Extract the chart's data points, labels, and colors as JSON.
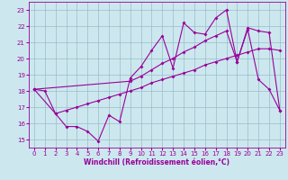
{
  "bg_color": "#cce8ee",
  "grid_color": "#99bbcc",
  "line_color": "#990099",
  "marker": "D",
  "markersize": 2.0,
  "linewidth": 0.8,
  "xlabel": "Windchill (Refroidissement éolien,°C)",
  "xlabel_fontsize": 5.5,
  "tick_fontsize": 5.0,
  "xlim": [
    -0.5,
    23.5
  ],
  "ylim": [
    14.5,
    23.5
  ],
  "yticks": [
    15,
    16,
    17,
    18,
    19,
    20,
    21,
    22,
    23
  ],
  "xticks": [
    0,
    1,
    2,
    3,
    4,
    5,
    6,
    7,
    8,
    9,
    10,
    11,
    12,
    13,
    14,
    15,
    16,
    17,
    18,
    19,
    20,
    21,
    22,
    23
  ],
  "line1_x": [
    0,
    1,
    2,
    3,
    4,
    5,
    6,
    7,
    8,
    9,
    10,
    11,
    12,
    13,
    14,
    15,
    16,
    17,
    18,
    19,
    20,
    21,
    22,
    23
  ],
  "line1_y": [
    18.1,
    18.0,
    16.6,
    15.8,
    15.8,
    15.5,
    14.9,
    16.5,
    16.1,
    18.8,
    19.5,
    20.5,
    21.4,
    19.4,
    22.2,
    21.6,
    21.5,
    22.5,
    23.0,
    19.8,
    21.8,
    18.7,
    18.1,
    16.8
  ],
  "line2_x": [
    0,
    9,
    10,
    11,
    12,
    13,
    14,
    15,
    16,
    17,
    18,
    19,
    20,
    21,
    22,
    23
  ],
  "line2_y": [
    18.1,
    18.6,
    18.9,
    19.3,
    19.7,
    20.0,
    20.4,
    20.7,
    21.1,
    21.4,
    21.7,
    19.8,
    21.9,
    21.7,
    21.6,
    16.8
  ],
  "line3_x": [
    0,
    2,
    3,
    4,
    5,
    6,
    7,
    8,
    9,
    10,
    11,
    12,
    13,
    14,
    15,
    16,
    17,
    18,
    19,
    20,
    21,
    22,
    23
  ],
  "line3_y": [
    18.1,
    16.6,
    16.8,
    17.0,
    17.2,
    17.4,
    17.6,
    17.8,
    18.0,
    18.2,
    18.5,
    18.7,
    18.9,
    19.1,
    19.3,
    19.6,
    19.8,
    20.0,
    20.2,
    20.4,
    20.6,
    20.6,
    20.5
  ]
}
